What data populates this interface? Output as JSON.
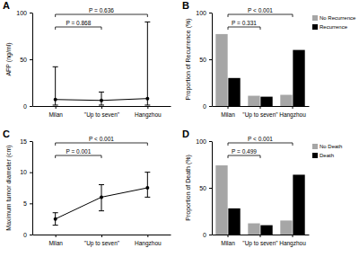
{
  "chart_data": [
    {
      "label": "A",
      "type": "line",
      "marker": "circle",
      "color": "#000000",
      "y_label": "AFP (ng/ml)",
      "categories": [
        "Milan",
        "\"Up to seven\"",
        "Hangzhou"
      ],
      "values": [
        7,
        6,
        8
      ],
      "lower": [
        1,
        1,
        1
      ],
      "upper": [
        42,
        15,
        90
      ],
      "ylim": [
        0,
        100
      ],
      "yticks": [
        0,
        50,
        100
      ],
      "annotations": [
        {
          "text": "P = 0.636",
          "from": "Milan",
          "to": "Hangzhou"
        },
        {
          "text": "P = 0.868",
          "from": "Milan",
          "to": "\"Up to seven\""
        }
      ]
    },
    {
      "label": "B",
      "type": "bar",
      "y_label": "Proportion of Recurrence (%)",
      "categories": [
        "Milan",
        "\"Up to seven\"",
        "Hangzhou"
      ],
      "series": [
        {
          "name": "No Recurrence",
          "color": "#a6a6a6",
          "values": [
            77,
            11,
            12
          ]
        },
        {
          "name": "Recurrence",
          "color": "#000000",
          "values": [
            30,
            10,
            60
          ]
        }
      ],
      "ylim": [
        0,
        100
      ],
      "yticks": [
        0,
        50,
        100
      ],
      "legend": "right",
      "annotations": [
        {
          "text": "P < 0.001",
          "from": "Milan",
          "to": "Hangzhou"
        },
        {
          "text": "P = 0.331",
          "from": "Milan",
          "to": "\"Up to seven\""
        }
      ]
    },
    {
      "label": "C",
      "type": "line",
      "marker": "circle",
      "color": "#000000",
      "y_label": "Maximum tumor diameter (cm)",
      "categories": [
        "Milan",
        "\"Up to seven\"",
        "Hangzhou"
      ],
      "values": [
        2.5,
        6,
        7.5
      ],
      "lower": [
        1.5,
        3.8,
        6
      ],
      "upper": [
        3.5,
        8,
        10
      ],
      "ylim": [
        0,
        15
      ],
      "yticks": [
        0,
        5,
        10,
        15
      ],
      "annotations": [
        {
          "text": "P < 0.001",
          "from": "Milan",
          "to": "Hangzhou"
        },
        {
          "text": "P = 0.001",
          "from": "Milan",
          "to": "\"Up to seven\""
        }
      ]
    },
    {
      "label": "D",
      "type": "bar",
      "y_label": "Proportion of Death (%)",
      "categories": [
        "Milan",
        "\"Up to seven\"",
        "Hangzhou"
      ],
      "series": [
        {
          "name": "No Death",
          "color": "#a6a6a6",
          "values": [
            74,
            12,
            15
          ]
        },
        {
          "name": "Death",
          "color": "#000000",
          "values": [
            28,
            10,
            64
          ]
        }
      ],
      "ylim": [
        0,
        100
      ],
      "yticks": [
        0,
        50,
        100
      ],
      "legend": "right",
      "annotations": [
        {
          "text": "P < 0.001",
          "from": "Milan",
          "to": "Hangzhou"
        },
        {
          "text": "P = 0.499",
          "from": "Milan",
          "to": "\"Up to seven\""
        }
      ]
    }
  ]
}
